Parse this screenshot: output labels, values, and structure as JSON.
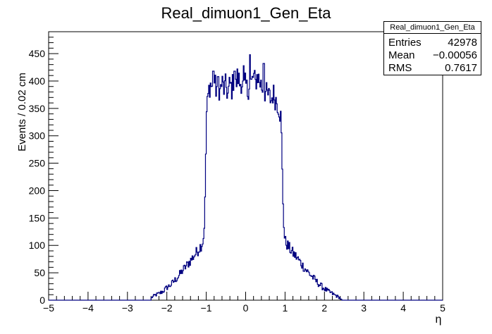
{
  "chart_data": {
    "type": "histogram",
    "title": "Real_dimuon1_Gen_Eta",
    "xlabel": "η",
    "ylabel": "Events / 0.02 cm",
    "xlim": [
      -5,
      5
    ],
    "ylim": [
      0,
      490
    ],
    "x_ticks": [
      "−5",
      "−4",
      "−3",
      "−2",
      "−1",
      "0",
      "1",
      "2",
      "3",
      "4",
      "5"
    ],
    "y_ticks": [
      "0",
      "50",
      "100",
      "150",
      "200",
      "250",
      "300",
      "350",
      "400",
      "450"
    ],
    "line_color": "#000080",
    "bin_width": 0.02,
    "bins": [
      [
        -2.4,
        4
      ],
      [
        -2.3,
        9
      ],
      [
        -2.2,
        12
      ],
      [
        -2.1,
        16
      ],
      [
        -2.0,
        23
      ],
      [
        -1.9,
        28
      ],
      [
        -1.8,
        36
      ],
      [
        -1.7,
        44
      ],
      [
        -1.6,
        54
      ],
      [
        -1.5,
        63
      ],
      [
        -1.4,
        72
      ],
      [
        -1.3,
        82
      ],
      [
        -1.2,
        92
      ],
      [
        -1.1,
        104
      ],
      [
        -1.06,
        118
      ],
      [
        -1.02,
        200
      ],
      [
        -1.0,
        335
      ],
      [
        -0.98,
        350
      ],
      [
        -0.94,
        380
      ],
      [
        -0.9,
        395
      ],
      [
        -0.85,
        390
      ],
      [
        -0.8,
        400
      ],
      [
        -0.75,
        385
      ],
      [
        -0.7,
        395
      ],
      [
        -0.65,
        380
      ],
      [
        -0.6,
        398
      ],
      [
        -0.55,
        385
      ],
      [
        -0.5,
        392
      ],
      [
        -0.45,
        375
      ],
      [
        -0.4,
        395
      ],
      [
        -0.35,
        385
      ],
      [
        -0.3,
        405
      ],
      [
        -0.25,
        390
      ],
      [
        -0.2,
        410
      ],
      [
        -0.15,
        395
      ],
      [
        -0.1,
        400
      ],
      [
        -0.05,
        385
      ],
      [
        0.0,
        395
      ],
      [
        0.05,
        380
      ],
      [
        0.1,
        400
      ],
      [
        0.15,
        395
      ],
      [
        0.2,
        410
      ],
      [
        0.25,
        395
      ],
      [
        0.3,
        412
      ],
      [
        0.35,
        400
      ],
      [
        0.4,
        392
      ],
      [
        0.45,
        380
      ],
      [
        0.5,
        380
      ],
      [
        0.55,
        375
      ],
      [
        0.6,
        372
      ],
      [
        0.65,
        365
      ],
      [
        0.7,
        378
      ],
      [
        0.75,
        368
      ],
      [
        0.8,
        362
      ],
      [
        0.85,
        350
      ],
      [
        0.9,
        330
      ],
      [
        0.94,
        200
      ],
      [
        0.98,
        120
      ],
      [
        1.0,
        108
      ],
      [
        1.1,
        96
      ],
      [
        1.2,
        86
      ],
      [
        1.3,
        78
      ],
      [
        1.4,
        68
      ],
      [
        1.5,
        58
      ],
      [
        1.6,
        50
      ],
      [
        1.7,
        42
      ],
      [
        1.8,
        34
      ],
      [
        1.9,
        27
      ],
      [
        2.0,
        21
      ],
      [
        2.1,
        16
      ],
      [
        2.2,
        12
      ],
      [
        2.3,
        8
      ],
      [
        2.4,
        4
      ],
      [
        2.44,
        0
      ]
    ],
    "spikes": [
      [
        -0.82,
        418
      ],
      [
        -0.7,
        408
      ],
      [
        -0.5,
        413
      ],
      [
        -0.28,
        418
      ],
      [
        -0.05,
        428
      ],
      [
        0.12,
        448
      ],
      [
        0.2,
        466
      ],
      [
        0.28,
        431
      ],
      [
        0.36,
        471
      ],
      [
        0.46,
        432
      ],
      [
        0.56,
        415
      ]
    ]
  },
  "stats": {
    "title": "Real_dimuon1_Gen_Eta",
    "entries_label": "Entries",
    "entries_value": "42978",
    "mean_label": "Mean",
    "mean_value": "−0.00056",
    "rms_label": "RMS",
    "rms_value": "0.7617"
  }
}
